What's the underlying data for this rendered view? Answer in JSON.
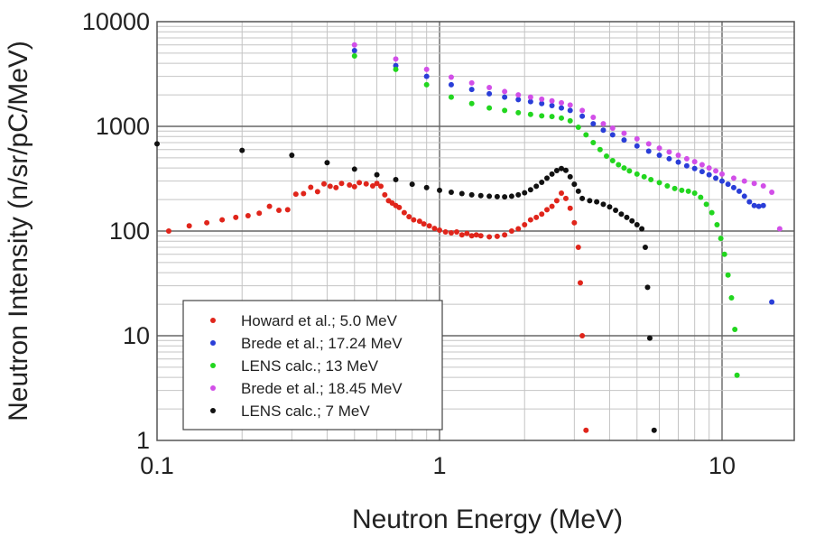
{
  "chart_data": {
    "type": "scatter",
    "title": "",
    "xlabel": "Neutron Energy (MeV)",
    "ylabel": "Neutron Intensity (n/sr/pC/MeV)",
    "x_scale": "log",
    "y_scale": "log",
    "xlim": [
      0.1,
      20
    ],
    "ylim": [
      1,
      10000
    ],
    "x_ticks": [
      0.1,
      1,
      10
    ],
    "x_tick_labels": [
      "0.1",
      "1",
      "10"
    ],
    "y_ticks": [
      1,
      10,
      100,
      1000,
      10000
    ],
    "y_tick_labels": [
      "1",
      "10",
      "100",
      "1000",
      "10000"
    ],
    "grid": true,
    "legend_position": "lower-left",
    "series": [
      {
        "name": "Howard et al.; 5.0 MeV",
        "color": "#e0251b",
        "points": [
          [
            0.11,
            100
          ],
          [
            0.13,
            112
          ],
          [
            0.15,
            120
          ],
          [
            0.17,
            128
          ],
          [
            0.19,
            135
          ],
          [
            0.21,
            140
          ],
          [
            0.23,
            148
          ],
          [
            0.25,
            172
          ],
          [
            0.27,
            158
          ],
          [
            0.29,
            160
          ],
          [
            0.31,
            225
          ],
          [
            0.33,
            228
          ],
          [
            0.35,
            262
          ],
          [
            0.37,
            238
          ],
          [
            0.39,
            282
          ],
          [
            0.41,
            268
          ],
          [
            0.43,
            260
          ],
          [
            0.45,
            285
          ],
          [
            0.48,
            275
          ],
          [
            0.5,
            265
          ],
          [
            0.52,
            290
          ],
          [
            0.55,
            282
          ],
          [
            0.58,
            270
          ],
          [
            0.6,
            285
          ],
          [
            0.62,
            268
          ],
          [
            0.64,
            222
          ],
          [
            0.66,
            195
          ],
          [
            0.68,
            185
          ],
          [
            0.7,
            175
          ],
          [
            0.72,
            168
          ],
          [
            0.75,
            150
          ],
          [
            0.78,
            137
          ],
          [
            0.81,
            128
          ],
          [
            0.85,
            124
          ],
          [
            0.88,
            117
          ],
          [
            0.92,
            112
          ],
          [
            0.96,
            106
          ],
          [
            1.0,
            102
          ],
          [
            1.05,
            98
          ],
          [
            1.1,
            96
          ],
          [
            1.15,
            98
          ],
          [
            1.2,
            92
          ],
          [
            1.25,
            95
          ],
          [
            1.3,
            90
          ],
          [
            1.35,
            92
          ],
          [
            1.4,
            90
          ],
          [
            1.5,
            88
          ],
          [
            1.6,
            89
          ],
          [
            1.7,
            92
          ],
          [
            1.8,
            100
          ],
          [
            1.9,
            105
          ],
          [
            2.0,
            115
          ],
          [
            2.1,
            128
          ],
          [
            2.2,
            135
          ],
          [
            2.3,
            145
          ],
          [
            2.4,
            160
          ],
          [
            2.5,
            172
          ],
          [
            2.6,
            195
          ],
          [
            2.7,
            230
          ],
          [
            2.8,
            205
          ],
          [
            2.9,
            165
          ],
          [
            3.0,
            120
          ],
          [
            3.1,
            70
          ],
          [
            3.15,
            32
          ],
          [
            3.2,
            10
          ],
          [
            3.3,
            1.25
          ]
        ]
      },
      {
        "name": "Brede et al.; 17.24 MeV",
        "color": "#2a3ed8",
        "points": [
          [
            0.5,
            5300
          ],
          [
            0.7,
            3800
          ],
          [
            0.9,
            3000
          ],
          [
            1.1,
            2500
          ],
          [
            1.3,
            2250
          ],
          [
            1.5,
            2050
          ],
          [
            1.7,
            1900
          ],
          [
            1.9,
            1800
          ],
          [
            2.1,
            1720
          ],
          [
            2.3,
            1650
          ],
          [
            2.5,
            1580
          ],
          [
            2.7,
            1500
          ],
          [
            2.9,
            1420
          ],
          [
            3.2,
            1250
          ],
          [
            3.5,
            1060
          ],
          [
            3.8,
            920
          ],
          [
            4.1,
            830
          ],
          [
            4.5,
            740
          ],
          [
            5.0,
            650
          ],
          [
            5.5,
            580
          ],
          [
            6.0,
            530
          ],
          [
            6.5,
            490
          ],
          [
            7.0,
            455
          ],
          [
            7.5,
            420
          ],
          [
            8.0,
            395
          ],
          [
            8.5,
            370
          ],
          [
            9.0,
            345
          ],
          [
            9.5,
            320
          ],
          [
            10.0,
            300
          ],
          [
            10.5,
            280
          ],
          [
            11.0,
            260
          ],
          [
            11.5,
            240
          ],
          [
            12.0,
            215
          ],
          [
            12.5,
            190
          ],
          [
            13.0,
            175
          ],
          [
            13.5,
            172
          ],
          [
            14.0,
            175
          ],
          [
            15.0,
            21
          ]
        ]
      },
      {
        "name": "LENS calc.; 13 MeV",
        "color": "#22d61f",
        "points": [
          [
            0.5,
            4700
          ],
          [
            0.7,
            3500
          ],
          [
            0.9,
            2500
          ],
          [
            1.1,
            1900
          ],
          [
            1.3,
            1650
          ],
          [
            1.5,
            1500
          ],
          [
            1.7,
            1420
          ],
          [
            1.9,
            1350
          ],
          [
            2.1,
            1300
          ],
          [
            2.3,
            1260
          ],
          [
            2.5,
            1240
          ],
          [
            2.7,
            1200
          ],
          [
            2.9,
            1130
          ],
          [
            3.1,
            980
          ],
          [
            3.3,
            830
          ],
          [
            3.5,
            700
          ],
          [
            3.7,
            600
          ],
          [
            3.9,
            520
          ],
          [
            4.1,
            470
          ],
          [
            4.3,
            430
          ],
          [
            4.5,
            400
          ],
          [
            4.7,
            375
          ],
          [
            5.0,
            350
          ],
          [
            5.3,
            330
          ],
          [
            5.6,
            310
          ],
          [
            6.0,
            290
          ],
          [
            6.4,
            270
          ],
          [
            6.8,
            255
          ],
          [
            7.2,
            245
          ],
          [
            7.6,
            240
          ],
          [
            8.0,
            230
          ],
          [
            8.4,
            210
          ],
          [
            8.8,
            180
          ],
          [
            9.2,
            150
          ],
          [
            9.6,
            115
          ],
          [
            9.9,
            85
          ],
          [
            10.2,
            60
          ],
          [
            10.5,
            38
          ],
          [
            10.8,
            23
          ],
          [
            11.1,
            11.5
          ],
          [
            11.3,
            4.2
          ]
        ]
      },
      {
        "name": "Brede et al.; 18.45 MeV",
        "color": "#d24fe8",
        "points": [
          [
            0.5,
            6000
          ],
          [
            0.7,
            4400
          ],
          [
            0.9,
            3500
          ],
          [
            1.1,
            2950
          ],
          [
            1.3,
            2600
          ],
          [
            1.5,
            2350
          ],
          [
            1.7,
            2150
          ],
          [
            1.9,
            2000
          ],
          [
            2.1,
            1900
          ],
          [
            2.3,
            1820
          ],
          [
            2.5,
            1750
          ],
          [
            2.7,
            1680
          ],
          [
            2.9,
            1600
          ],
          [
            3.2,
            1420
          ],
          [
            3.5,
            1220
          ],
          [
            3.8,
            1060
          ],
          [
            4.1,
            960
          ],
          [
            4.5,
            860
          ],
          [
            5.0,
            760
          ],
          [
            5.5,
            680
          ],
          [
            6.0,
            620
          ],
          [
            6.5,
            570
          ],
          [
            7.0,
            530
          ],
          [
            7.5,
            490
          ],
          [
            8.0,
            460
          ],
          [
            8.5,
            430
          ],
          [
            9.0,
            400
          ],
          [
            9.5,
            375
          ],
          [
            10.0,
            350
          ],
          [
            11.0,
            320
          ],
          [
            12.0,
            300
          ],
          [
            13.0,
            285
          ],
          [
            14.0,
            270
          ],
          [
            15.0,
            235
          ],
          [
            16.0,
            105
          ]
        ]
      },
      {
        "name": "LENS calc.; 7 MeV",
        "color": "#111111",
        "points": [
          [
            0.1,
            680
          ],
          [
            0.2,
            590
          ],
          [
            0.3,
            530
          ],
          [
            0.4,
            450
          ],
          [
            0.5,
            390
          ],
          [
            0.6,
            345
          ],
          [
            0.7,
            310
          ],
          [
            0.8,
            280
          ],
          [
            0.9,
            260
          ],
          [
            1.0,
            245
          ],
          [
            1.1,
            235
          ],
          [
            1.2,
            228
          ],
          [
            1.3,
            222
          ],
          [
            1.4,
            218
          ],
          [
            1.5,
            215
          ],
          [
            1.6,
            213
          ],
          [
            1.7,
            212
          ],
          [
            1.8,
            215
          ],
          [
            1.9,
            222
          ],
          [
            2.0,
            232
          ],
          [
            2.1,
            248
          ],
          [
            2.2,
            268
          ],
          [
            2.3,
            292
          ],
          [
            2.4,
            320
          ],
          [
            2.5,
            350
          ],
          [
            2.6,
            378
          ],
          [
            2.7,
            395
          ],
          [
            2.8,
            380
          ],
          [
            2.9,
            330
          ],
          [
            3.0,
            280
          ],
          [
            3.1,
            240
          ],
          [
            3.2,
            205
          ],
          [
            3.4,
            195
          ],
          [
            3.6,
            190
          ],
          [
            3.8,
            180
          ],
          [
            4.0,
            170
          ],
          [
            4.2,
            158
          ],
          [
            4.4,
            145
          ],
          [
            4.6,
            135
          ],
          [
            4.8,
            125
          ],
          [
            5.0,
            115
          ],
          [
            5.2,
            105
          ],
          [
            5.35,
            70
          ],
          [
            5.45,
            29
          ],
          [
            5.55,
            9.5
          ],
          [
            5.75,
            1.25
          ]
        ]
      }
    ]
  }
}
